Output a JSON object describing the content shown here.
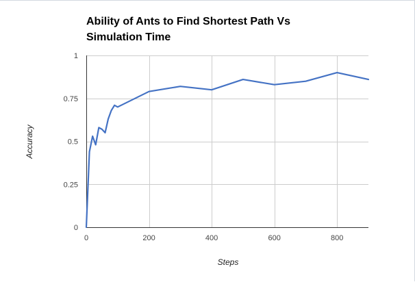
{
  "chart_data": {
    "type": "line",
    "title_lines": [
      "Ability of Ants to Find Shortest Path Vs",
      "Simulation Time"
    ],
    "xlabel": "Steps",
    "ylabel": "Accuracy",
    "xlim": [
      0,
      900
    ],
    "ylim": [
      0,
      1
    ],
    "x_ticks": [
      0,
      200,
      400,
      600,
      800
    ],
    "x_tick_labels": [
      "0",
      "200",
      "400",
      "600",
      "800"
    ],
    "y_ticks": [
      0,
      0.25,
      0.5,
      0.75,
      1
    ],
    "y_tick_labels": [
      "0",
      "0.25",
      "0.5",
      "0.75",
      "1"
    ],
    "grid": true,
    "legend": "none",
    "line_color": "#4472c4",
    "series": [
      {
        "x": [
          0,
          10,
          20,
          30,
          40,
          50,
          60,
          70,
          80,
          90,
          100,
          200,
          300,
          400,
          500,
          600,
          700,
          800,
          900
        ],
        "values": [
          0.0,
          0.44,
          0.53,
          0.48,
          0.58,
          0.57,
          0.55,
          0.63,
          0.68,
          0.71,
          0.7,
          0.79,
          0.82,
          0.8,
          0.86,
          0.83,
          0.85,
          0.9,
          0.86
        ]
      }
    ]
  }
}
